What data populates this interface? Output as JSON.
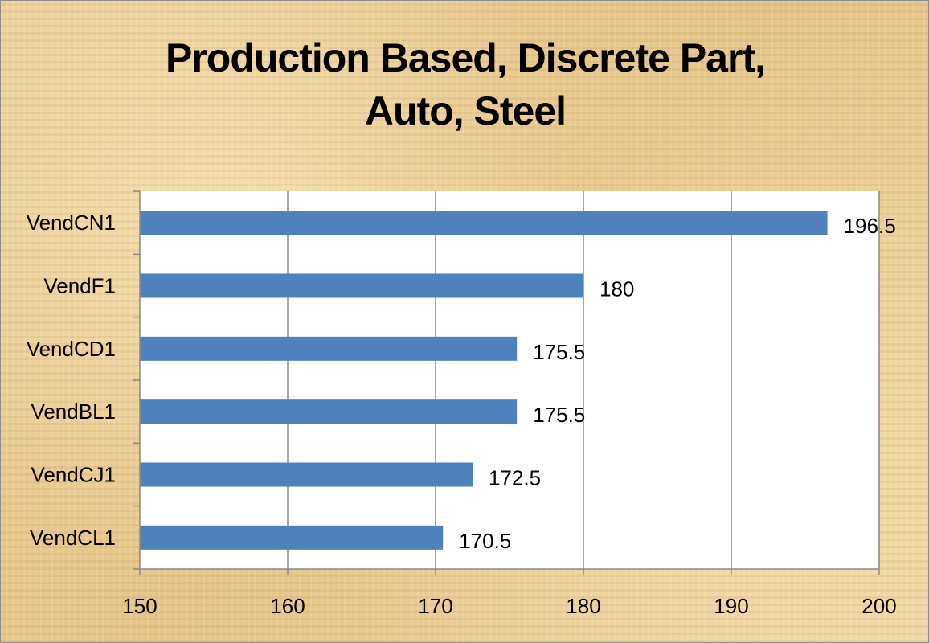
{
  "chart_data": {
    "type": "bar",
    "orientation": "horizontal",
    "title_lines": [
      "Production Based, Discrete Part,",
      "Auto, Steel"
    ],
    "categories": [
      "VendCN1",
      "VendF1",
      "VendCD1",
      "VendBL1",
      "VendCJ1",
      "VendCL1"
    ],
    "values": [
      196.5,
      180,
      175.5,
      175.5,
      172.5,
      170.5
    ],
    "data_labels": [
      "196.5",
      "180",
      "175.5",
      "175.5",
      "172.5",
      "170.5"
    ],
    "xlim": [
      150,
      200
    ],
    "x_ticks": [
      150,
      160,
      170,
      180,
      190,
      200
    ],
    "grid": "vertical",
    "legend": "none",
    "bar_color": "#4f81bd",
    "plot_background": "#ffffff",
    "xlabel": "",
    "ylabel": ""
  }
}
